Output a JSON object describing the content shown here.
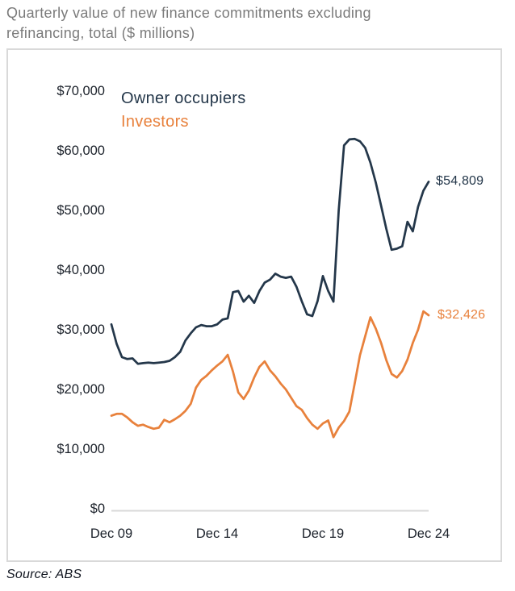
{
  "header": {
    "title_lines": [
      "Quarterly value of new finance commitments excluding",
      "refinancing, total ($ millions)"
    ]
  },
  "legend": {
    "owner": "Owner occupiers",
    "investors": "Investors"
  },
  "end_labels": {
    "owner": "$54,809",
    "investors": "$32,426"
  },
  "footer": {
    "source": "Source: ABS"
  },
  "colors": {
    "owner": "#24374a",
    "investors": "#e8813c",
    "title_gray": "#7b7b7b",
    "axis_text": "#1a2029",
    "frame": "#d9d9d9",
    "baseline": "#d9d9d9"
  },
  "chart_data": {
    "type": "line",
    "title": "Quarterly value of new finance commitments excluding refinancing, total ($ millions)",
    "x_frequency": "quarterly",
    "x_range": [
      "Dec 09",
      "Dec 24"
    ],
    "xticks": [
      "Dec 09",
      "Dec 14",
      "Dec 19",
      "Dec 24"
    ],
    "yticks": [
      "$70,000",
      "$60,000",
      "$50,000",
      "$40,000",
      "$30,000",
      "$20,000",
      "$10,000",
      "$0"
    ],
    "ylim": [
      0,
      70000
    ],
    "grid": "baseline-only",
    "legend_position": "top-left-inside",
    "series": [
      {
        "name": "Owner occupiers",
        "color": "#24374a",
        "end_label": "$54,809",
        "values": [
          30900,
          27600,
          25400,
          25100,
          25200,
          24300,
          24400,
          24500,
          24400,
          24500,
          24600,
          24800,
          25400,
          26300,
          28200,
          29400,
          30400,
          30800,
          30600,
          30600,
          30900,
          31700,
          31900,
          36300,
          36500,
          34700,
          35700,
          34500,
          36500,
          37900,
          38400,
          39400,
          38900,
          38700,
          38900,
          37200,
          34800,
          32600,
          32300,
          34800,
          39000,
          36500,
          34700,
          50000,
          60900,
          61900,
          62000,
          61600,
          60500,
          58000,
          54700,
          50800,
          46900,
          43400,
          43600,
          44000,
          48100,
          46500,
          50600,
          53300,
          54809
        ]
      },
      {
        "name": "Investors",
        "color": "#e8813c",
        "end_label": "$32,426",
        "values": [
          15600,
          15900,
          15900,
          15300,
          14500,
          13900,
          14100,
          13700,
          13400,
          13600,
          14900,
          14500,
          15000,
          15600,
          16400,
          17600,
          20300,
          21600,
          22300,
          23200,
          24000,
          24700,
          25800,
          23000,
          19500,
          18400,
          19800,
          22000,
          23800,
          24700,
          23200,
          22200,
          21000,
          20000,
          18600,
          17200,
          16600,
          15200,
          14100,
          13400,
          14300,
          14800,
          12000,
          13600,
          14700,
          16300,
          20900,
          25700,
          28900,
          32100,
          30200,
          27800,
          24900,
          22600,
          22000,
          23100,
          25000,
          27800,
          30000,
          33100,
          32426
        ]
      }
    ]
  }
}
